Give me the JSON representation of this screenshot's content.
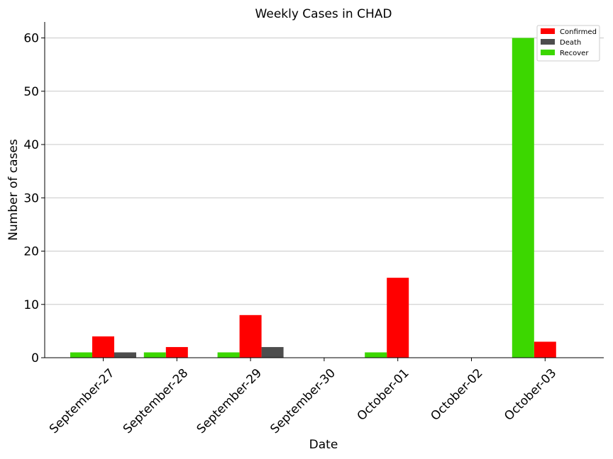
{
  "chart_data": {
    "type": "bar",
    "title": "Weekly Cases in CHAD",
    "xlabel": "Date",
    "ylabel": "Number of cases",
    "categories": [
      "September-27",
      "September-28",
      "September-29",
      "September-30",
      "October-01",
      "October-02",
      "October-03"
    ],
    "series": [
      {
        "name": "Confirmed",
        "color": "#ff0000",
        "values": [
          4,
          2,
          8,
          0,
          15,
          0,
          3
        ]
      },
      {
        "name": "Death",
        "color": "#4d4d4d",
        "values": [
          1,
          0,
          2,
          0,
          0,
          0,
          0
        ]
      },
      {
        "name": "Recover",
        "color": "#3cd700",
        "values": [
          1,
          1,
          1,
          0,
          1,
          0,
          60
        ]
      }
    ],
    "ylim": [
      0,
      63
    ],
    "yticks": [
      0,
      10,
      20,
      30,
      40,
      50,
      60
    ],
    "grid": "horizontal",
    "legend_position": "top-right"
  }
}
